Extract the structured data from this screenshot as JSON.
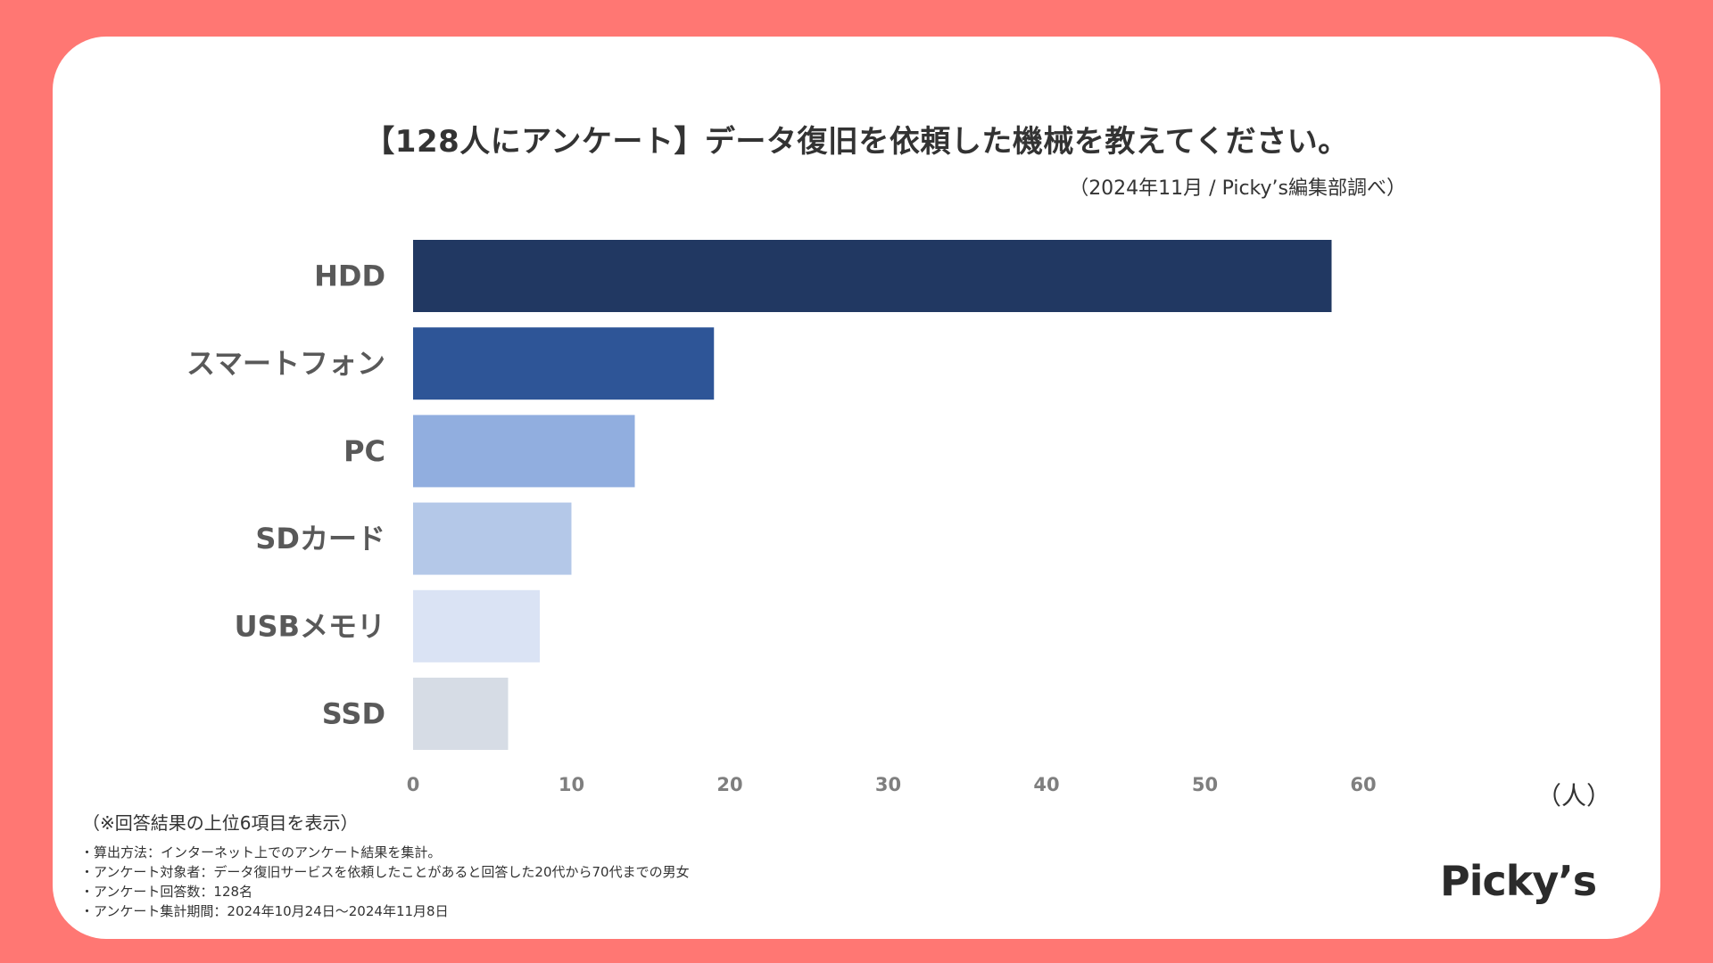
{
  "title": "【128人にアンケート】データ復旧を依頼した機械を教えてください。",
  "subtitle": "（2024年11月 / Picky’s編集部調べ）",
  "unit_label": "（人）",
  "note": "（※回答結果の上位6項目を表示）",
  "method_lines": [
    "算出方法：インターネット上でのアンケート結果を集計。",
    "アンケート対象者：データ復旧サービスを依頼したことがあると回答した20代から70代までの男女",
    "アンケート回答数：128名",
    "アンケート集計期間：2024年10月24日〜2024年11月8日"
  ],
  "logo": "Picky’s",
  "colors": {
    "frame": "#ff7773",
    "card": "#ffffff",
    "bars": [
      "#213862",
      "#2e5597",
      "#91aedf",
      "#b4c8e8",
      "#dae3f4",
      "#d6dce5"
    ]
  },
  "chart_data": {
    "type": "bar",
    "orientation": "horizontal",
    "title": "【128人にアンケート】データ復旧を依頼した機械を教えてください。",
    "categories": [
      "HDD",
      "スマートフォン",
      "PC",
      "SDカード",
      "USBメモリ",
      "SSD"
    ],
    "values": [
      58,
      19,
      14,
      10,
      8,
      6
    ],
    "xlabel": "（人）",
    "ylabel": "",
    "xlim": [
      0,
      60
    ],
    "xticks": [
      0,
      10,
      20,
      30,
      40,
      50,
      60
    ],
    "grid": false,
    "legend": "none"
  }
}
